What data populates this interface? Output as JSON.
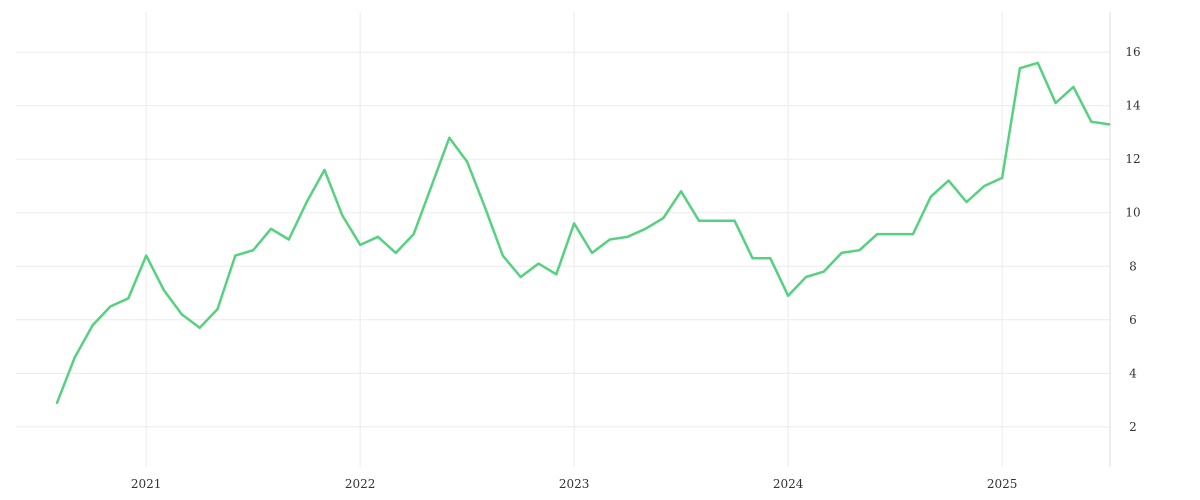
{
  "chart_data": {
    "type": "line",
    "title": "",
    "xlabel": "",
    "ylabel": "",
    "x_tick_labels": [
      "2021",
      "2022",
      "2023",
      "2024",
      "2025"
    ],
    "y_tick_labels": [
      "2",
      "4",
      "6",
      "8",
      "10",
      "12",
      "14",
      "16"
    ],
    "xlim": [
      "2020-08",
      "2025-07"
    ],
    "ylim": [
      0.5,
      17.5
    ],
    "grid": true,
    "y_axis_position": "right",
    "series": [
      {
        "color": "#55d17f",
        "points": [
          [
            "2020-08",
            2.9
          ],
          [
            "2020-09",
            4.6
          ],
          [
            "2020-10",
            5.8
          ],
          [
            "2020-11",
            6.5
          ],
          [
            "2020-12",
            6.8
          ],
          [
            "2021-01",
            8.4
          ],
          [
            "2021-02",
            7.1
          ],
          [
            "2021-03",
            6.2
          ],
          [
            "2021-04",
            5.7
          ],
          [
            "2021-05",
            6.4
          ],
          [
            "2021-06",
            8.4
          ],
          [
            "2021-07",
            8.6
          ],
          [
            "2021-08",
            9.4
          ],
          [
            "2021-09",
            9.0
          ],
          [
            "2021-10",
            10.4
          ],
          [
            "2021-11",
            11.6
          ],
          [
            "2021-12",
            9.9
          ],
          [
            "2022-01",
            8.8
          ],
          [
            "2022-02",
            9.1
          ],
          [
            "2022-03",
            8.5
          ],
          [
            "2022-04",
            9.2
          ],
          [
            "2022-05",
            11.0
          ],
          [
            "2022-06",
            12.8
          ],
          [
            "2022-07",
            11.9
          ],
          [
            "2022-08",
            10.2
          ],
          [
            "2022-09",
            8.4
          ],
          [
            "2022-10",
            7.6
          ],
          [
            "2022-11",
            8.1
          ],
          [
            "2022-12",
            7.7
          ],
          [
            "2023-01",
            9.6
          ],
          [
            "2023-02",
            8.5
          ],
          [
            "2023-03",
            9.0
          ],
          [
            "2023-04",
            9.1
          ],
          [
            "2023-05",
            9.4
          ],
          [
            "2023-06",
            9.8
          ],
          [
            "2023-07",
            10.8
          ],
          [
            "2023-08",
            9.7
          ],
          [
            "2023-09",
            9.7
          ],
          [
            "2023-10",
            9.7
          ],
          [
            "2023-11",
            8.3
          ],
          [
            "2023-12",
            8.3
          ],
          [
            "2024-01",
            6.9
          ],
          [
            "2024-02",
            7.6
          ],
          [
            "2024-03",
            7.8
          ],
          [
            "2024-04",
            8.5
          ],
          [
            "2024-05",
            8.6
          ],
          [
            "2024-06",
            9.2
          ],
          [
            "2024-07",
            9.2
          ],
          [
            "2024-08",
            9.2
          ],
          [
            "2024-09",
            10.6
          ],
          [
            "2024-10",
            11.2
          ],
          [
            "2024-11",
            10.4
          ],
          [
            "2024-12",
            11.0
          ],
          [
            "2025-01",
            11.3
          ],
          [
            "2025-02",
            15.4
          ],
          [
            "2025-03",
            15.6
          ],
          [
            "2025-04",
            14.1
          ],
          [
            "2025-05",
            14.7
          ],
          [
            "2025-06",
            13.4
          ],
          [
            "2025-07",
            13.3
          ]
        ]
      }
    ]
  }
}
